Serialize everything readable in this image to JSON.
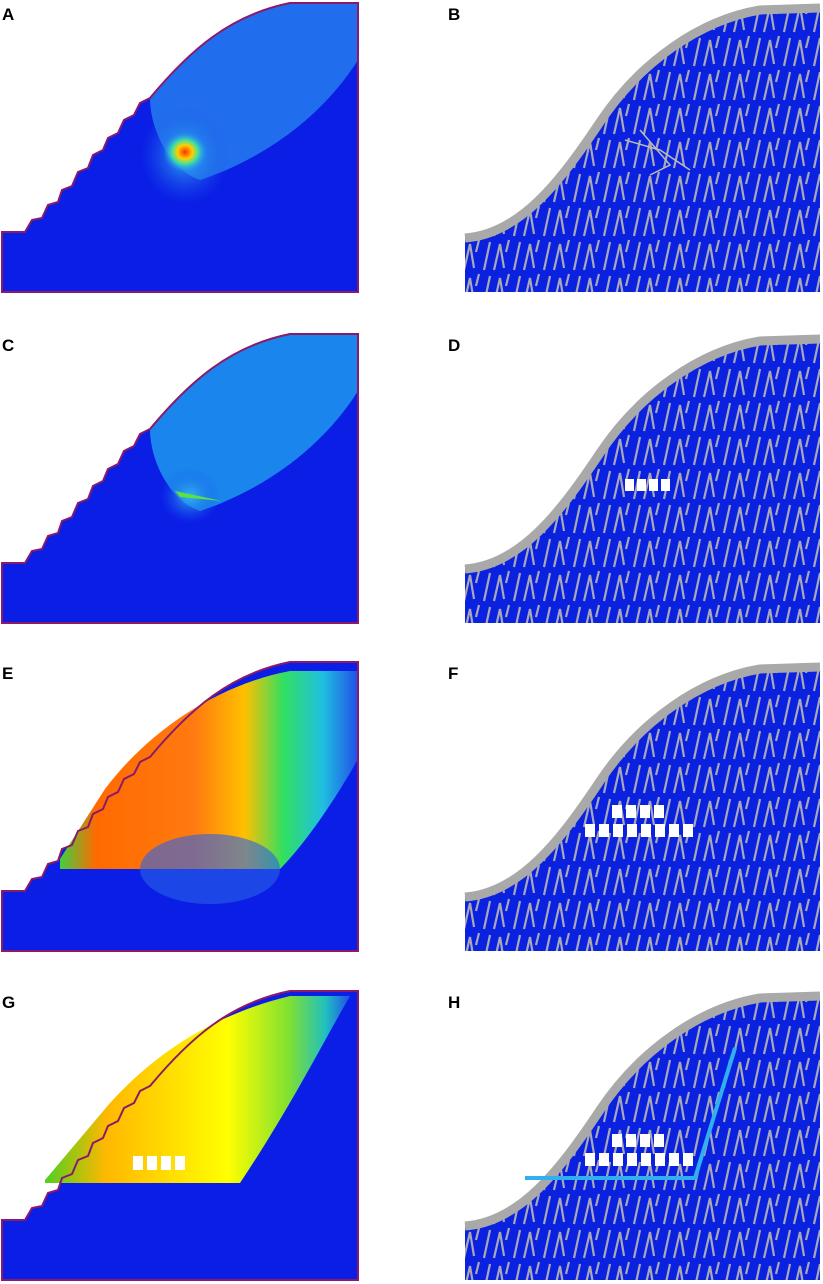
{
  "panels": [
    {
      "label": "A"
    },
    {
      "label": "B"
    },
    {
      "label": "C"
    },
    {
      "label": "D"
    },
    {
      "label": "E"
    },
    {
      "label": "F"
    },
    {
      "label": "G"
    },
    {
      "label": "H"
    }
  ]
}
